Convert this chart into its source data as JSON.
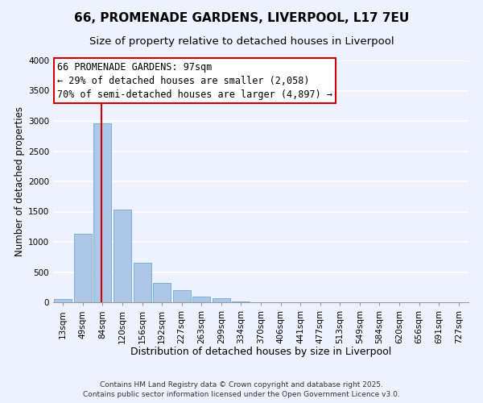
{
  "title": "66, PROMENADE GARDENS, LIVERPOOL, L17 7EU",
  "subtitle": "Size of property relative to detached houses in Liverpool",
  "xlabel": "Distribution of detached houses by size in Liverpool",
  "ylabel": "Number of detached properties",
  "bar_color": "#aec6e8",
  "bar_edge_color": "#6aaad4",
  "property_label": "66 PROMENADE GARDENS: 97sqm",
  "pct_smaller": 29,
  "n_smaller": "2,058",
  "pct_larger_semi": 70,
  "n_larger_semi": "4,897",
  "vline_color": "#cc0000",
  "ylim": [
    0,
    4000
  ],
  "yticks": [
    0,
    500,
    1000,
    1500,
    2000,
    2500,
    3000,
    3500,
    4000
  ],
  "background_color": "#eef2ff",
  "grid_color": "#ffffff",
  "annotation_box_color": "#ffffff",
  "annotation_box_edge": "#cc0000",
  "footer1": "Contains HM Land Registry data © Crown copyright and database right 2025.",
  "footer2": "Contains public sector information licensed under the Open Government Licence v3.0.",
  "title_fontsize": 11,
  "subtitle_fontsize": 9.5,
  "xlabel_fontsize": 9,
  "ylabel_fontsize": 8.5,
  "tick_fontsize": 7.5,
  "annotation_fontsize": 8.5,
  "footer_fontsize": 6.5,
  "all_bar_labels": [
    "13sqm",
    "49sqm",
    "84sqm",
    "120sqm",
    "156sqm",
    "192sqm",
    "227sqm",
    "263sqm",
    "299sqm",
    "334sqm",
    "370sqm",
    "406sqm",
    "441sqm",
    "477sqm",
    "513sqm",
    "549sqm",
    "584sqm",
    "620sqm",
    "656sqm",
    "691sqm",
    "727sqm"
  ],
  "all_bar_values": [
    50,
    1130,
    2960,
    1530,
    660,
    320,
    205,
    100,
    70,
    20,
    0,
    0,
    0,
    0,
    0,
    0,
    0,
    0,
    0,
    0,
    0
  ],
  "vline_x": 1.93
}
